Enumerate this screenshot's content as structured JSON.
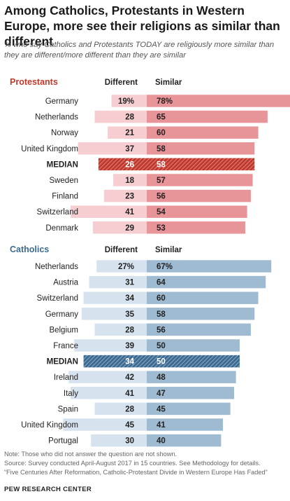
{
  "title": "Among Catholics, Protestants in Western Europe, more see their religions as similar than different",
  "subtitle": "% who say Catholics and Protestants TODAY are religiously more similar than they are different/more different than they are similar",
  "notes": {
    "note": "Note: Those who did not answer the question are not shown.",
    "source": "Source: Survey conducted April-August 2017 in 15 countries. See Methodology for details.",
    "report": "“Five Centuries After Reformation, Catholic-Protestant Divide in Western Europe Has Faded”"
  },
  "brand": "PEW RESEARCH CENTER",
  "colors": {
    "protestant_similar": "#e8959a",
    "protestant_different": "#f6cdd0",
    "protestant_label": "#c0392b",
    "catholic_similar": "#9fbbd2",
    "catholic_different": "#d6e3ee",
    "catholic_label": "#3d6a91"
  },
  "chart_data": [
    {
      "type": "bar",
      "group": "Protestants",
      "column_labels": [
        "Different",
        "Similar"
      ],
      "categories": [
        "Germany",
        "Netherlands",
        "Norway",
        "United Kingdom",
        "MEDIAN",
        "Sweden",
        "Finland",
        "Switzerland",
        "Denmark"
      ],
      "series": [
        {
          "name": "Different",
          "values": [
            19,
            28,
            21,
            37,
            26,
            18,
            23,
            41,
            29
          ],
          "labels": [
            "19%",
            "28",
            "21",
            "37",
            "26",
            "18",
            "23",
            "41",
            "29"
          ]
        },
        {
          "name": "Similar",
          "values": [
            78,
            65,
            60,
            58,
            58,
            57,
            56,
            54,
            53
          ],
          "labels": [
            "78%",
            "65",
            "60",
            "58",
            "58",
            "57",
            "56",
            "54",
            "53"
          ]
        }
      ],
      "highlight": "MEDIAN"
    },
    {
      "type": "bar",
      "group": "Catholics",
      "column_labels": [
        "Different",
        "Similar"
      ],
      "categories": [
        "Netherlands",
        "Austria",
        "Switzerland",
        "Germany",
        "Belgium",
        "France",
        "MEDIAN",
        "Ireland",
        "Italy",
        "Spain",
        "United Kingdom",
        "Portugal"
      ],
      "series": [
        {
          "name": "Different",
          "values": [
            27,
            31,
            34,
            35,
            28,
            39,
            34,
            42,
            41,
            28,
            45,
            30
          ],
          "labels": [
            "27%",
            "31",
            "34",
            "35",
            "28",
            "39",
            "34",
            "42",
            "41",
            "28",
            "45",
            "30"
          ]
        },
        {
          "name": "Similar",
          "values": [
            67,
            64,
            60,
            58,
            56,
            50,
            50,
            48,
            47,
            45,
            41,
            40
          ],
          "labels": [
            "67%",
            "64",
            "60",
            "58",
            "56",
            "50",
            "50",
            "48",
            "47",
            "45",
            "41",
            "40"
          ]
        }
      ],
      "highlight": "MEDIAN"
    }
  ]
}
